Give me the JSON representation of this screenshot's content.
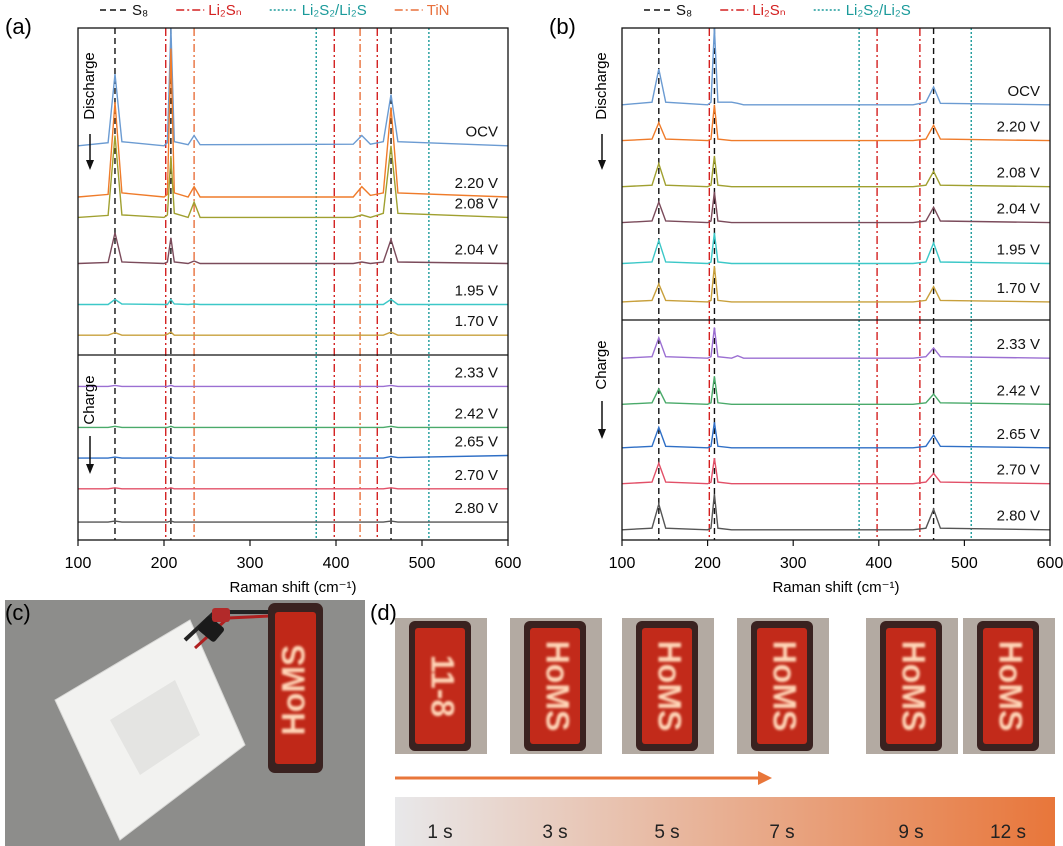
{
  "chart_data": [
    {
      "type": "line",
      "panel_label": "(a)",
      "xlabel": "Raman shift (cm⁻¹)",
      "xlim": [
        100,
        600
      ],
      "xticks": [
        100,
        200,
        300,
        400,
        500,
        600
      ],
      "ylim": [
        0,
        100
      ],
      "annotations": [
        "Discharge",
        "Charge"
      ],
      "x": [
        100,
        135,
        143,
        151,
        200,
        204,
        208,
        212,
        228,
        235,
        242,
        420,
        430,
        440,
        455,
        464,
        472,
        600
      ],
      "reference_lines": [
        {
          "name": "S₈",
          "color": "#111111",
          "style": "dashed",
          "x": [
            143,
            208,
            464
          ]
        },
        {
          "name": "Li₂Sₙ",
          "color": "#d42020",
          "style": "dash-dot",
          "x": [
            202,
            398,
            448
          ]
        },
        {
          "name": "Li₂S₂/Li₂S",
          "color": "#1a9a9a",
          "style": "dotted",
          "x": [
            377,
            508
          ]
        },
        {
          "name": "TiN",
          "color": "#e8703c",
          "style": "dash-dot",
          "x": [
            235,
            428
          ]
        }
      ],
      "series": [
        {
          "name": "OCV",
          "color": "#6b9bd2",
          "values": [
            77,
            77.6,
            91,
            77.8,
            77,
            77.6,
            100,
            77.8,
            77.2,
            79,
            77.2,
            77.3,
            79,
            77.3,
            77.8,
            87,
            77.8,
            77
          ]
        },
        {
          "name": "2.20 V",
          "color": "#ef7b2a",
          "values": [
            67,
            67.5,
            85.5,
            67.8,
            67,
            67.5,
            96,
            67.8,
            67,
            69,
            67,
            67,
            69,
            67.3,
            67.8,
            84.5,
            67.8,
            67
          ]
        },
        {
          "name": "2.08 V",
          "color": "#a0a030",
          "values": [
            63,
            63.4,
            79,
            63.5,
            63,
            63.5,
            75,
            63.8,
            63,
            66,
            63,
            63,
            63.5,
            63,
            63.8,
            77,
            63.8,
            63
          ]
        },
        {
          "name": "2.04 V",
          "color": "#7b4b5b",
          "values": [
            54,
            54.2,
            60,
            54.3,
            54,
            54.3,
            59,
            54.3,
            54,
            54.5,
            54,
            54,
            54.3,
            54,
            54.3,
            58.7,
            54.3,
            54
          ]
        },
        {
          "name": "1.95 V",
          "color": "#3cc8c8",
          "values": [
            46,
            46,
            47,
            46.1,
            46,
            46,
            47,
            46.1,
            46,
            46.1,
            46,
            46,
            46,
            46,
            46,
            47,
            46,
            46
          ]
        },
        {
          "name": "1.70 V",
          "color": "#c8a03c",
          "values": [
            40,
            40,
            40.5,
            40,
            40,
            40.2,
            40.6,
            40,
            40,
            40,
            40,
            40,
            40,
            40,
            40,
            40.6,
            40,
            40
          ]
        },
        {
          "name": "2.33 V",
          "color": "#9b6fd2",
          "values": [
            30,
            30,
            30.2,
            30,
            30,
            30,
            30.2,
            30,
            30,
            30,
            30,
            30,
            30,
            30,
            30,
            30.2,
            30,
            30
          ]
        },
        {
          "name": "2.42 V",
          "color": "#4aaa6a",
          "values": [
            22,
            22,
            22.2,
            22,
            22,
            22,
            22.2,
            22,
            22,
            22,
            22,
            22,
            22,
            22,
            22,
            22.2,
            22,
            22
          ]
        },
        {
          "name": "2.65 V",
          "color": "#2f6fc6",
          "values": [
            16,
            16,
            16.2,
            16,
            16,
            16,
            16.2,
            16,
            16,
            16,
            16,
            16,
            16,
            16,
            16,
            16.3,
            16.1,
            16.5
          ]
        },
        {
          "name": "2.70 V",
          "color": "#e25068",
          "values": [
            10,
            10,
            10.2,
            10,
            10,
            10,
            10.2,
            10,
            10,
            10,
            10,
            10,
            10,
            10,
            10,
            10.2,
            10,
            10
          ]
        },
        {
          "name": "2.80 V",
          "color": "#555555",
          "values": [
            3.5,
            3.5,
            3.7,
            3.5,
            3.5,
            3.5,
            3.7,
            3.5,
            3.5,
            3.5,
            3.5,
            3.5,
            3.5,
            3.5,
            3.5,
            3.7,
            3.5,
            3.5
          ]
        }
      ]
    },
    {
      "type": "line",
      "panel_label": "(b)",
      "xlabel": "Raman shift (cm⁻¹)",
      "xlim": [
        100,
        600
      ],
      "xticks": [
        100,
        200,
        300,
        400,
        500,
        600
      ],
      "ylim": [
        0,
        100
      ],
      "annotations": [
        "Discharge",
        "Charge"
      ],
      "x": [
        100,
        135,
        143,
        151,
        200,
        204,
        208,
        212,
        228,
        235,
        242,
        420,
        430,
        440,
        455,
        464,
        472,
        600
      ],
      "reference_lines": [
        {
          "name": "S₈",
          "color": "#111111",
          "style": "dashed",
          "x": [
            143,
            208,
            464
          ]
        },
        {
          "name": "Li₂Sₙ",
          "color": "#d42020",
          "style": "dash-dot",
          "x": [
            202,
            398,
            448
          ]
        },
        {
          "name": "Li₂S₂/Li₂S",
          "color": "#1a9a9a",
          "style": "dotted",
          "x": [
            377,
            508
          ]
        }
      ],
      "series": [
        {
          "name": "OCV",
          "color": "#6b9bd2",
          "values": [
            85,
            85.5,
            92,
            85.5,
            85,
            85.5,
            100,
            85.5,
            85.5,
            85.3,
            85,
            85,
            85,
            85,
            85.5,
            88.5,
            85.3,
            85
          ]
        },
        {
          "name": "2.20 V",
          "color": "#ef7b2a",
          "values": [
            78,
            78.3,
            81.5,
            78.3,
            78,
            78.3,
            85,
            78.3,
            78,
            78,
            78,
            78,
            78,
            78,
            78.3,
            81,
            78.3,
            78
          ]
        },
        {
          "name": "2.08 V",
          "color": "#a0a030",
          "values": [
            69,
            69.3,
            73.5,
            69.3,
            69,
            69.3,
            75,
            69.3,
            69,
            69,
            69,
            69,
            69,
            69,
            69.3,
            72,
            69.3,
            69
          ]
        },
        {
          "name": "2.04 V",
          "color": "#7b4b5b",
          "values": [
            62,
            62.3,
            66,
            62.3,
            62,
            62.3,
            68,
            62.3,
            62,
            62,
            62,
            62,
            62,
            62,
            62.3,
            65,
            62.3,
            62
          ]
        },
        {
          "name": "1.95 V",
          "color": "#3cc8c8",
          "values": [
            54,
            54.3,
            58.5,
            54.3,
            54,
            54.3,
            60,
            54.3,
            54,
            54,
            54,
            54,
            54,
            54,
            54.3,
            58,
            54.3,
            54
          ]
        },
        {
          "name": "1.70 V",
          "color": "#c8a03c",
          "values": [
            46.5,
            46.8,
            50,
            46.8,
            46.5,
            46.8,
            53.5,
            46.8,
            46.5,
            46.5,
            46.5,
            46.5,
            46.5,
            46.5,
            46.8,
            49.5,
            46.8,
            46.5
          ]
        },
        {
          "name": "2.33 V",
          "color": "#9b6fd2",
          "values": [
            35.5,
            35.8,
            39.5,
            35.8,
            35.5,
            35.8,
            41.5,
            35.8,
            35.5,
            36,
            35.5,
            35.5,
            35.5,
            35.5,
            35.8,
            37.5,
            35.8,
            35.5
          ]
        },
        {
          "name": "2.42 V",
          "color": "#4aaa6a",
          "values": [
            26.5,
            26.8,
            29.5,
            26.8,
            26.5,
            26.8,
            32,
            26.8,
            26.5,
            26.5,
            26.5,
            26.5,
            26.5,
            26.5,
            26.8,
            28.5,
            26.8,
            26.5
          ]
        },
        {
          "name": "2.65 V",
          "color": "#2f6fc6",
          "values": [
            18,
            18.3,
            22,
            18.3,
            18,
            18.3,
            23,
            18.3,
            18,
            18,
            18,
            18,
            18,
            18,
            18.3,
            20.5,
            18.3,
            18
          ]
        },
        {
          "name": "2.70 V",
          "color": "#e25068",
          "values": [
            11,
            11.3,
            15,
            11.3,
            11,
            11.3,
            16,
            11.3,
            11,
            11,
            11,
            11,
            11,
            11,
            11.3,
            13,
            11.3,
            11
          ]
        },
        {
          "name": "2.80 V",
          "color": "#555555",
          "values": [
            2,
            2.3,
            7,
            2.3,
            2,
            2.3,
            9,
            2.3,
            2,
            2,
            2,
            2,
            2,
            2,
            2.3,
            6,
            2.3,
            2
          ]
        }
      ]
    }
  ],
  "photo_c": {
    "label": "(c)",
    "display": "HoMS"
  },
  "photo_d": {
    "label": "(d)",
    "frames": [
      "11-8",
      "HoMS",
      "HoMS",
      "HoMS",
      "HoMS",
      "HoMS"
    ],
    "times": [
      "1 s",
      "3 s",
      "5 s",
      "7 s",
      "9 s",
      "12 s"
    ]
  }
}
